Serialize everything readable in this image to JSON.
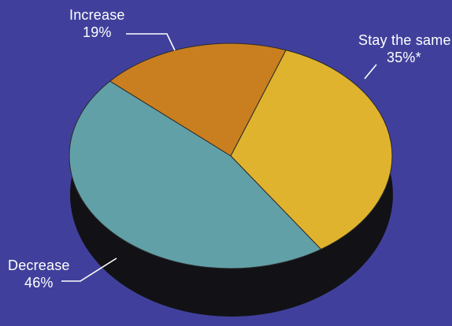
{
  "chart_data": {
    "type": "pie",
    "title": "",
    "slices": [
      {
        "label": "Increase",
        "value": 19,
        "display_value": "19%",
        "color": "#c97f1f"
      },
      {
        "label": "Stay the same",
        "value": 35,
        "display_value": "35%*",
        "color": "#e0b32e"
      },
      {
        "label": "Decrease",
        "value": 46,
        "display_value": "46%",
        "color": "#62a0a8"
      }
    ],
    "style": {
      "background": "#40409c",
      "side_shadow": "#121216",
      "label_color": "#ffffff",
      "three_d": true
    }
  }
}
